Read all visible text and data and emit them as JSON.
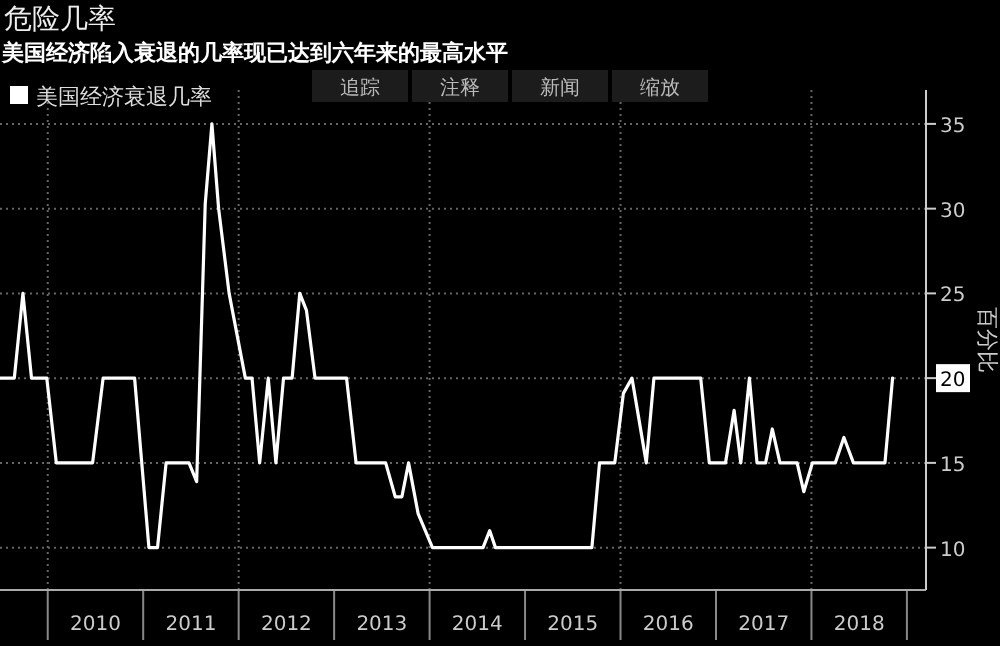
{
  "chart_data": {
    "type": "line",
    "title": "危险几率",
    "subtitle": "美国经济陷入衰退的几率现已达到六年来的最高水平",
    "ylabel": "百分比",
    "annotations": [
      "追踪",
      "注释",
      "新闻",
      "缩放"
    ],
    "xlim": [
      2009.5,
      2019.2
    ],
    "ylim": [
      7.5,
      37
    ],
    "xticks": [
      {
        "value": 2010,
        "label": null
      },
      {
        "value": 2010.5,
        "label": "2010"
      },
      {
        "value": 2011,
        "label": null
      },
      {
        "value": 2011.5,
        "label": "2011"
      },
      {
        "value": 2012,
        "label": null
      },
      {
        "value": 2012.5,
        "label": "2012"
      },
      {
        "value": 2013,
        "label": null
      },
      {
        "value": 2013.5,
        "label": "2013"
      },
      {
        "value": 2014,
        "label": null
      },
      {
        "value": 2014.5,
        "label": "2014"
      },
      {
        "value": 2015,
        "label": null
      },
      {
        "value": 2015.5,
        "label": "2015"
      },
      {
        "value": 2016,
        "label": null
      },
      {
        "value": 2016.5,
        "label": "2016"
      },
      {
        "value": 2017,
        "label": null
      },
      {
        "value": 2017.5,
        "label": "2017"
      },
      {
        "value": 2018,
        "label": null
      },
      {
        "value": 2018.5,
        "label": "2018"
      },
      {
        "value": 2019,
        "label": null
      }
    ],
    "yticks": [
      10,
      15,
      20,
      25,
      30,
      35
    ],
    "grid": true,
    "legend": "top left",
    "marker": "none",
    "line_style": "solid",
    "series": [
      {
        "name": "美国经济衰退几率",
        "color": "#ffffff",
        "x": [
          2009.5,
          2009.65,
          2009.74,
          2009.83,
          2009.99,
          2010.09,
          2010.47,
          2010.58,
          2010.91,
          2011.06,
          2011.15,
          2011.24,
          2011.48,
          2011.56,
          2011.65,
          2011.72,
          2011.79,
          2011.9,
          2012.07,
          2012.14,
          2012.22,
          2012.31,
          2012.39,
          2012.47,
          2012.56,
          2012.64,
          2012.71,
          2012.8,
          2013.13,
          2013.23,
          2013.54,
          2013.64,
          2013.71,
          2013.78,
          2013.88,
          2014.03,
          2014.56,
          2014.63,
          2014.69,
          2015.7,
          2015.78,
          2015.94,
          2016.03,
          2016.12,
          2016.27,
          2016.35,
          2016.84,
          2016.93,
          2017.1,
          2017.19,
          2017.26,
          2017.35,
          2017.43,
          2017.52,
          2017.59,
          2017.67,
          2017.85,
          2017.92,
          2018.01,
          2018.25,
          2018.34,
          2018.44,
          2018.77,
          2018.85
        ],
        "values": [
          20,
          20,
          25,
          20,
          20,
          15,
          15,
          20,
          20,
          10,
          10,
          15,
          15,
          13.9,
          30.3,
          35,
          30,
          25,
          20,
          20,
          15,
          20,
          15,
          20,
          20,
          25,
          24,
          20,
          20,
          15,
          15,
          13,
          13,
          15,
          12,
          10,
          10,
          11,
          10,
          10,
          15,
          15,
          19.1,
          20,
          15,
          20,
          20,
          15,
          15,
          18.1,
          15,
          20,
          15,
          15,
          17,
          15,
          15,
          13.3,
          15,
          15,
          16.5,
          15,
          15,
          20
        ]
      }
    ]
  }
}
